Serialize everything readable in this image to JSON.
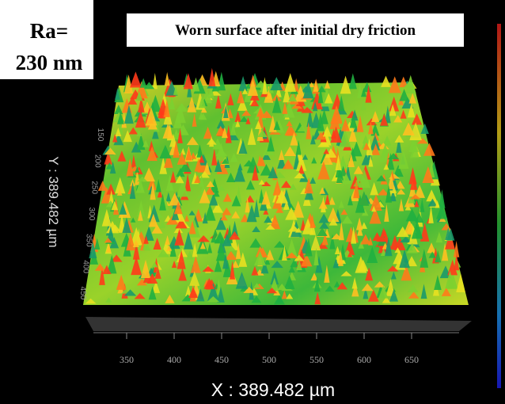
{
  "annotation": {
    "line1": "Ra=",
    "line2": "230 nm"
  },
  "title": "Worn surface after initial dry friction",
  "x_axis": {
    "label": "X : 389.482 µm",
    "ticks": [
      350,
      400,
      450,
      500,
      550,
      600,
      650
    ]
  },
  "y_axis": {
    "label": "Y : 389.482 µm",
    "ticks": [
      150,
      200,
      250,
      300,
      350,
      400,
      450
    ]
  }
}
